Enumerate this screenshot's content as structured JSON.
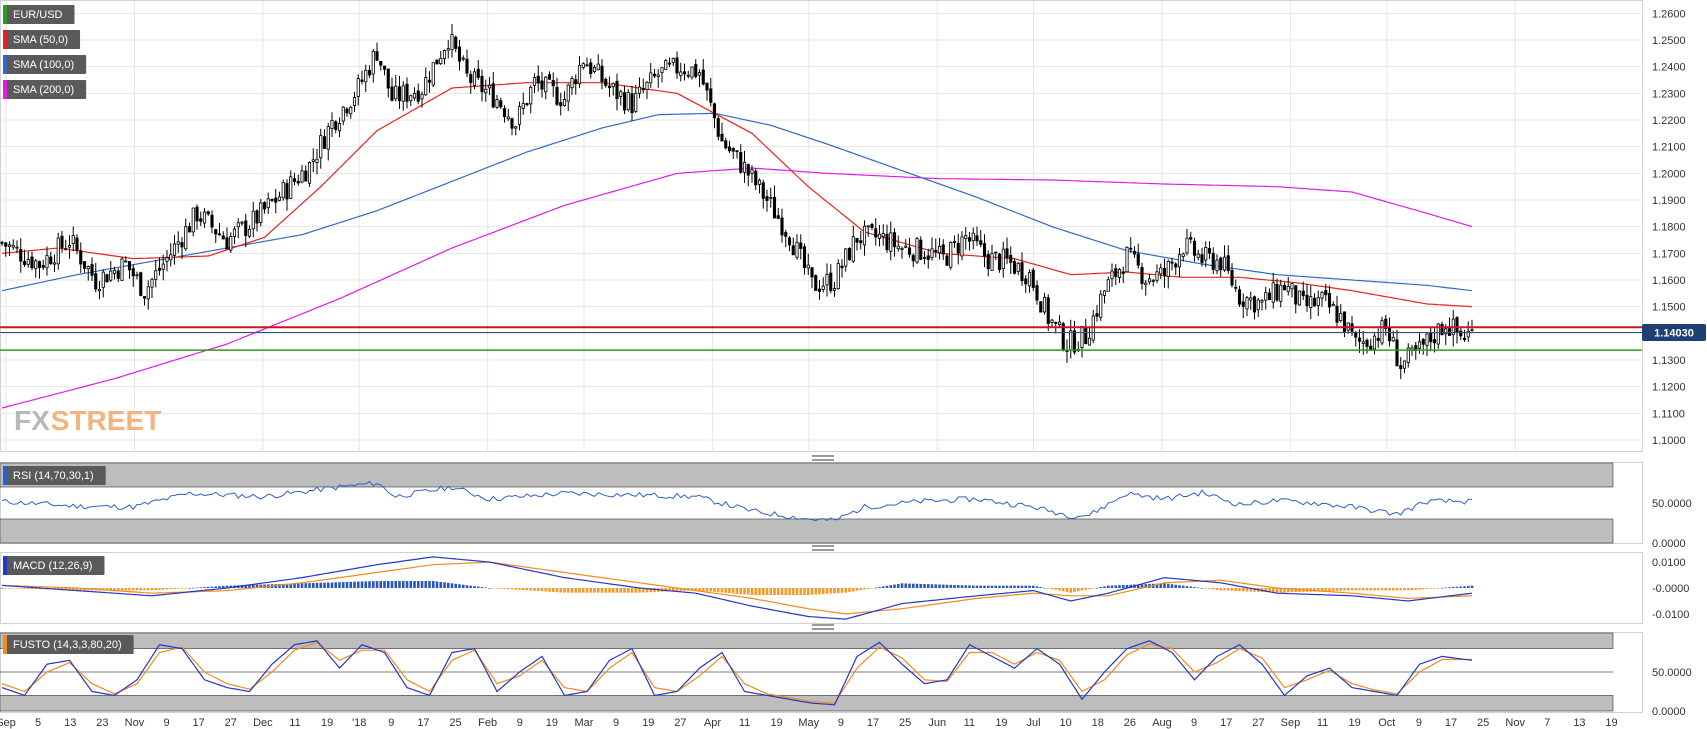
{
  "colors": {
    "background": "#ffffff",
    "grid": "#e6e6e6",
    "panel_border": "#d0d0d0",
    "up_candle": "#ffffff",
    "down_candle": "#000000",
    "sma50": "#e8231c",
    "sma100": "#2f6bc4",
    "sma200": "#e51ae5",
    "support_line": "#2e9a1e",
    "resistance_line": "#c8161d",
    "price_line": "#2b4d8c",
    "price_badge": "#1f3f74",
    "rsi_line": "#2f5fc8",
    "macd_line": "#2437c7",
    "macd_signal": "#f08b20",
    "macd_hist_pos": "#2a58b8",
    "macd_hist_neg": "#f39a2a",
    "stoch_k": "#2437c7",
    "stoch_d": "#f08b20",
    "zone_fill": "#bdbdbd",
    "watermark_fx": "#b9b9b9",
    "watermark_street": "#f2b47c"
  },
  "watermark": {
    "left": "FX",
    "right": "STREET"
  },
  "main_panel": {
    "labels": [
      {
        "text": "EUR/USD",
        "color": "#2e9a1e"
      },
      {
        "text": "SMA (50,0)",
        "color": "#e8231c"
      },
      {
        "text": "SMA (100,0)",
        "color": "#2f6bc4"
      },
      {
        "text": "SMA (200,0)",
        "color": "#e51ae5"
      }
    ],
    "y_ticks": [
      "1.2600",
      "1.2500",
      "1.2400",
      "1.2300",
      "1.2200",
      "1.2100",
      "1.2000",
      "1.1900",
      "1.1800",
      "1.1700",
      "1.1600",
      "1.1500",
      "1.1400",
      "1.1300",
      "1.1200",
      "1.1100",
      "1.1000"
    ],
    "current_price": "1.14030"
  },
  "rsi_panel": {
    "label": "RSI (14,70,30,1)",
    "y_ticks": [
      "50.0000",
      "0.0000"
    ]
  },
  "macd_panel": {
    "label": "MACD (12,26,9)",
    "y_ticks": [
      "0.0100",
      "-0.0000",
      "-0.0100"
    ]
  },
  "stoch_panel": {
    "label": "FUSTO (14,3,3,80,20)",
    "y_ticks": [
      "50.0000",
      "0.0000"
    ]
  },
  "x_axis": {
    "labels": [
      "Sep",
      "5",
      "13",
      "23",
      "Nov",
      "9",
      "17",
      "27",
      "Dec",
      "11",
      "19",
      "'18",
      "9",
      "17",
      "25",
      "Feb",
      "9",
      "19",
      "Mar",
      "9",
      "19",
      "27",
      "Apr",
      "11",
      "19",
      "May",
      "9",
      "17",
      "25",
      "Jun",
      "11",
      "19",
      "Jul",
      "10",
      "18",
      "26",
      "Aug",
      "9",
      "17",
      "27",
      "Sep",
      "11",
      "19",
      "Oct",
      "9",
      "17",
      "25",
      "Nov",
      "7",
      "13",
      "19"
    ]
  },
  "chart_data": {
    "type": "candlestick",
    "symbol": "EUR/USD",
    "ylim": [
      1.0955,
      1.2635
    ],
    "current_price": 1.1403,
    "horizontal_levels": {
      "resistance": 1.1423,
      "support": 1.1337
    },
    "price_path": [
      [
        0,
        1.174
      ],
      [
        10,
        1.166
      ],
      [
        18,
        1.175
      ],
      [
        25,
        1.16
      ],
      [
        33,
        1.166
      ],
      [
        38,
        1.156
      ],
      [
        45,
        1.17
      ],
      [
        52,
        1.185
      ],
      [
        60,
        1.175
      ],
      [
        67,
        1.182
      ],
      [
        75,
        1.193
      ],
      [
        82,
        1.203
      ],
      [
        88,
        1.219
      ],
      [
        95,
        1.232
      ],
      [
        100,
        1.246
      ],
      [
        104,
        1.228
      ],
      [
        112,
        1.232
      ],
      [
        119,
        1.251
      ],
      [
        124,
        1.236
      ],
      [
        132,
        1.228
      ],
      [
        137,
        1.219
      ],
      [
        142,
        1.234
      ],
      [
        150,
        1.228
      ],
      [
        155,
        1.243
      ],
      [
        162,
        1.232
      ],
      [
        168,
        1.226
      ],
      [
        175,
        1.237
      ],
      [
        181,
        1.24
      ],
      [
        186,
        1.238
      ],
      [
        192,
        1.212
      ],
      [
        198,
        1.202
      ],
      [
        204,
        1.19
      ],
      [
        210,
        1.177
      ],
      [
        216,
        1.158
      ],
      [
        222,
        1.16
      ],
      [
        228,
        1.176
      ],
      [
        234,
        1.176
      ],
      [
        240,
        1.172
      ],
      [
        246,
        1.171
      ],
      [
        251,
        1.168
      ],
      [
        257,
        1.176
      ],
      [
        263,
        1.168
      ],
      [
        268,
        1.167
      ],
      [
        274,
        1.162
      ],
      [
        279,
        1.146
      ],
      [
        284,
        1.136
      ],
      [
        289,
        1.139
      ],
      [
        294,
        1.156
      ],
      [
        300,
        1.169
      ],
      [
        305,
        1.161
      ],
      [
        310,
        1.162
      ],
      [
        315,
        1.173
      ],
      [
        320,
        1.168
      ],
      [
        325,
        1.167
      ],
      [
        330,
        1.154
      ],
      [
        336,
        1.151
      ],
      [
        342,
        1.158
      ],
      [
        347,
        1.15
      ],
      [
        352,
        1.152
      ],
      [
        357,
        1.146
      ],
      [
        361,
        1.136
      ],
      [
        365,
        1.138
      ],
      [
        369,
        1.142
      ],
      [
        373,
        1.128
      ],
      [
        377,
        1.132
      ],
      [
        381,
        1.138
      ],
      [
        385,
        1.144
      ],
      [
        389,
        1.139
      ],
      [
        392,
        1.14
      ]
    ],
    "sma50_path": [
      [
        0,
        1.17
      ],
      [
        15,
        1.172
      ],
      [
        35,
        1.168
      ],
      [
        55,
        1.169
      ],
      [
        70,
        1.176
      ],
      [
        85,
        1.195
      ],
      [
        100,
        1.216
      ],
      [
        120,
        1.232
      ],
      [
        140,
        1.234
      ],
      [
        160,
        1.234
      ],
      [
        180,
        1.23
      ],
      [
        200,
        1.215
      ],
      [
        215,
        1.195
      ],
      [
        230,
        1.178
      ],
      [
        250,
        1.17
      ],
      [
        270,
        1.168
      ],
      [
        285,
        1.162
      ],
      [
        300,
        1.163
      ],
      [
        315,
        1.161
      ],
      [
        330,
        1.161
      ],
      [
        345,
        1.159
      ],
      [
        360,
        1.156
      ],
      [
        380,
        1.151
      ],
      [
        392,
        1.15
      ]
    ],
    "sma100_path": [
      [
        0,
        1.156
      ],
      [
        20,
        1.162
      ],
      [
        40,
        1.167
      ],
      [
        60,
        1.172
      ],
      [
        80,
        1.177
      ],
      [
        100,
        1.186
      ],
      [
        120,
        1.197
      ],
      [
        140,
        1.208
      ],
      [
        160,
        1.217
      ],
      [
        175,
        1.222
      ],
      [
        190,
        1.2225
      ],
      [
        205,
        1.218
      ],
      [
        220,
        1.211
      ],
      [
        240,
        1.201
      ],
      [
        260,
        1.191
      ],
      [
        280,
        1.18
      ],
      [
        300,
        1.171
      ],
      [
        320,
        1.166
      ],
      [
        340,
        1.162
      ],
      [
        360,
        1.16
      ],
      [
        380,
        1.158
      ],
      [
        392,
        1.156
      ]
    ],
    "sma200_path": [
      [
        0,
        1.112
      ],
      [
        30,
        1.123
      ],
      [
        60,
        1.136
      ],
      [
        90,
        1.153
      ],
      [
        120,
        1.172
      ],
      [
        150,
        1.188
      ],
      [
        180,
        1.2
      ],
      [
        200,
        1.202
      ],
      [
        220,
        1.2
      ],
      [
        250,
        1.198
      ],
      [
        280,
        1.1975
      ],
      [
        310,
        1.196
      ],
      [
        340,
        1.195
      ],
      [
        360,
        1.193
      ],
      [
        380,
        1.185
      ],
      [
        392,
        1.18
      ]
    ],
    "rsi": {
      "ylim": [
        0,
        100
      ],
      "overbought": 70,
      "oversold": 30,
      "path": [
        [
          0,
          52
        ],
        [
          20,
          46
        ],
        [
          35,
          45
        ],
        [
          50,
          62
        ],
        [
          70,
          58
        ],
        [
          90,
          70
        ],
        [
          100,
          75
        ],
        [
          105,
          58
        ],
        [
          120,
          70
        ],
        [
          130,
          55
        ],
        [
          150,
          62
        ],
        [
          170,
          60
        ],
        [
          185,
          58
        ],
        [
          200,
          40
        ],
        [
          215,
          30
        ],
        [
          222,
          28
        ],
        [
          230,
          45
        ],
        [
          245,
          52
        ],
        [
          260,
          55
        ],
        [
          275,
          45
        ],
        [
          285,
          34
        ],
        [
          290,
          35
        ],
        [
          300,
          62
        ],
        [
          310,
          55
        ],
        [
          320,
          63
        ],
        [
          330,
          48
        ],
        [
          340,
          53
        ],
        [
          350,
          50
        ],
        [
          360,
          45
        ],
        [
          372,
          36
        ],
        [
          380,
          52
        ],
        [
          392,
          52
        ]
      ]
    },
    "macd": {
      "ylim": [
        -0.0135,
        0.0135
      ],
      "macd": [
        [
          0,
          0.001
        ],
        [
          20,
          -0.001
        ],
        [
          40,
          -0.003
        ],
        [
          60,
          0.0
        ],
        [
          80,
          0.004
        ],
        [
          100,
          0.009
        ],
        [
          115,
          0.012
        ],
        [
          130,
          0.01
        ],
        [
          150,
          0.004
        ],
        [
          170,
          0.0
        ],
        [
          185,
          -0.002
        ],
        [
          200,
          -0.007
        ],
        [
          215,
          -0.011
        ],
        [
          225,
          -0.012
        ],
        [
          240,
          -0.006
        ],
        [
          260,
          -0.003
        ],
        [
          275,
          -0.001
        ],
        [
          285,
          -0.005
        ],
        [
          295,
          -0.002
        ],
        [
          310,
          0.004
        ],
        [
          325,
          0.002
        ],
        [
          340,
          -0.002
        ],
        [
          360,
          -0.003
        ],
        [
          375,
          -0.005
        ],
        [
          392,
          -0.002
        ]
      ],
      "signal": [
        [
          0,
          0.001
        ],
        [
          20,
          0.0
        ],
        [
          40,
          -0.002
        ],
        [
          60,
          -0.001
        ],
        [
          80,
          0.002
        ],
        [
          100,
          0.006
        ],
        [
          115,
          0.009
        ],
        [
          130,
          0.01
        ],
        [
          150,
          0.006
        ],
        [
          170,
          0.002
        ],
        [
          185,
          -0.001
        ],
        [
          200,
          -0.004
        ],
        [
          215,
          -0.008
        ],
        [
          225,
          -0.01
        ],
        [
          240,
          -0.008
        ],
        [
          260,
          -0.004
        ],
        [
          275,
          -0.002
        ],
        [
          285,
          -0.003
        ],
        [
          295,
          -0.003
        ],
        [
          310,
          0.002
        ],
        [
          325,
          0.003
        ],
        [
          340,
          0.0
        ],
        [
          360,
          -0.002
        ],
        [
          375,
          -0.004
        ],
        [
          392,
          -0.003
        ]
      ]
    },
    "stochastic": {
      "ylim": [
        0,
        100
      ],
      "overbought": 80,
      "oversold": 20,
      "k": [
        [
          0,
          30
        ],
        [
          6,
          20
        ],
        [
          12,
          60
        ],
        [
          18,
          65
        ],
        [
          24,
          25
        ],
        [
          30,
          20
        ],
        [
          36,
          40
        ],
        [
          42,
          85
        ],
        [
          48,
          80
        ],
        [
          54,
          40
        ],
        [
          60,
          30
        ],
        [
          66,
          25
        ],
        [
          72,
          60
        ],
        [
          78,
          85
        ],
        [
          84,
          90
        ],
        [
          90,
          55
        ],
        [
          96,
          85
        ],
        [
          102,
          75
        ],
        [
          108,
          30
        ],
        [
          114,
          20
        ],
        [
          120,
          75
        ],
        [
          126,
          80
        ],
        [
          132,
          25
        ],
        [
          138,
          50
        ],
        [
          144,
          70
        ],
        [
          150,
          20
        ],
        [
          156,
          25
        ],
        [
          162,
          65
        ],
        [
          168,
          80
        ],
        [
          174,
          20
        ],
        [
          180,
          25
        ],
        [
          186,
          55
        ],
        [
          192,
          75
        ],
        [
          198,
          25
        ],
        [
          204,
          20
        ],
        [
          210,
          15
        ],
        [
          216,
          10
        ],
        [
          222,
          8
        ],
        [
          228,
          70
        ],
        [
          234,
          88
        ],
        [
          240,
          60
        ],
        [
          246,
          35
        ],
        [
          252,
          40
        ],
        [
          258,
          85
        ],
        [
          264,
          70
        ],
        [
          270,
          55
        ],
        [
          276,
          80
        ],
        [
          282,
          60
        ],
        [
          288,
          15
        ],
        [
          294,
          50
        ],
        [
          300,
          80
        ],
        [
          306,
          90
        ],
        [
          312,
          75
        ],
        [
          318,
          40
        ],
        [
          324,
          70
        ],
        [
          330,
          85
        ],
        [
          336,
          60
        ],
        [
          342,
          20
        ],
        [
          348,
          45
        ],
        [
          354,
          55
        ],
        [
          360,
          30
        ],
        [
          366,
          25
        ],
        [
          372,
          20
        ],
        [
          378,
          60
        ],
        [
          384,
          70
        ],
        [
          392,
          65
        ]
      ],
      "d": [
        [
          0,
          35
        ],
        [
          6,
          25
        ],
        [
          12,
          50
        ],
        [
          18,
          62
        ],
        [
          24,
          35
        ],
        [
          30,
          22
        ],
        [
          36,
          35
        ],
        [
          42,
          75
        ],
        [
          48,
          82
        ],
        [
          54,
          50
        ],
        [
          60,
          35
        ],
        [
          66,
          28
        ],
        [
          72,
          50
        ],
        [
          78,
          78
        ],
        [
          84,
          88
        ],
        [
          90,
          65
        ],
        [
          96,
          78
        ],
        [
          102,
          78
        ],
        [
          108,
          40
        ],
        [
          114,
          25
        ],
        [
          120,
          65
        ],
        [
          126,
          78
        ],
        [
          132,
          35
        ],
        [
          138,
          45
        ],
        [
          144,
          65
        ],
        [
          150,
          30
        ],
        [
          156,
          25
        ],
        [
          162,
          55
        ],
        [
          168,
          75
        ],
        [
          174,
          30
        ],
        [
          180,
          25
        ],
        [
          186,
          45
        ],
        [
          192,
          70
        ],
        [
          198,
          35
        ],
        [
          204,
          22
        ],
        [
          210,
          17
        ],
        [
          216,
          12
        ],
        [
          222,
          10
        ],
        [
          228,
          55
        ],
        [
          234,
          82
        ],
        [
          240,
          68
        ],
        [
          246,
          40
        ],
        [
          252,
          38
        ],
        [
          258,
          75
        ],
        [
          264,
          75
        ],
        [
          270,
          60
        ],
        [
          276,
          75
        ],
        [
          282,
          65
        ],
        [
          288,
          25
        ],
        [
          294,
          40
        ],
        [
          300,
          72
        ],
        [
          306,
          86
        ],
        [
          312,
          80
        ],
        [
          318,
          50
        ],
        [
          324,
          62
        ],
        [
          330,
          80
        ],
        [
          336,
          68
        ],
        [
          342,
          30
        ],
        [
          348,
          40
        ],
        [
          354,
          52
        ],
        [
          360,
          35
        ],
        [
          366,
          27
        ],
        [
          372,
          22
        ],
        [
          378,
          50
        ],
        [
          384,
          66
        ],
        [
          392,
          66
        ]
      ]
    }
  }
}
